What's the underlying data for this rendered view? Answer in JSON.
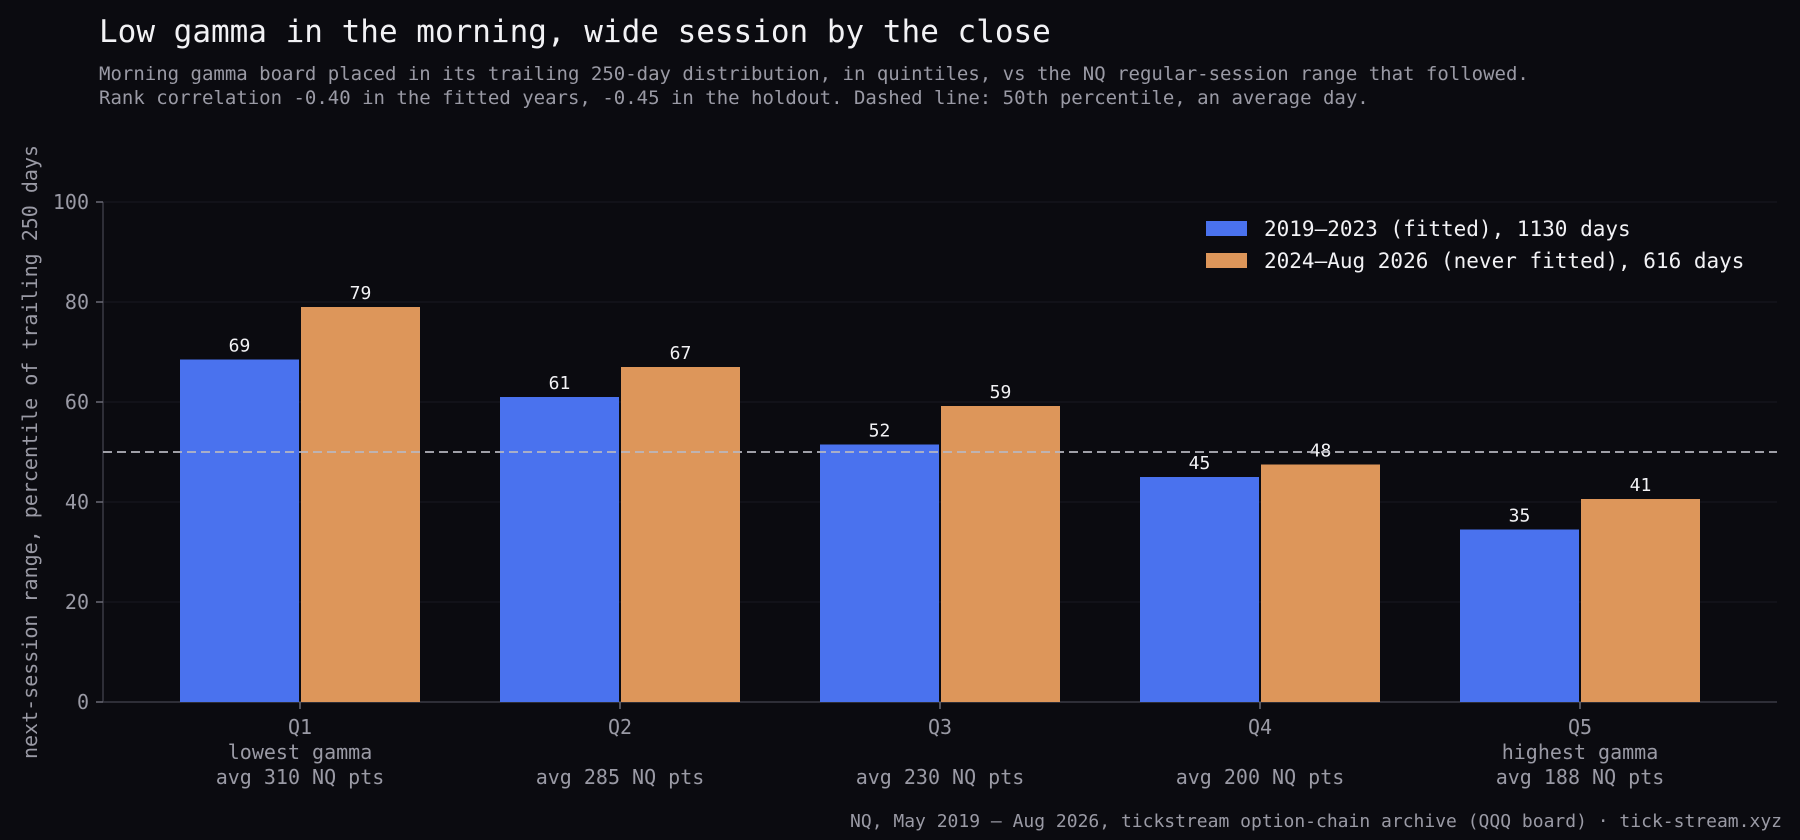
{
  "chart_data": {
    "type": "bar",
    "title": "Low gamma in the morning, wide session by the close",
    "subtitle": [
      "Morning gamma board placed in its trailing 250-day distribution, in quintiles, vs the NQ regular-session range that followed.",
      "Rank correlation -0.40 in the fitted years, -0.45 in the holdout. Dashed line: 50th percentile, an average day."
    ],
    "ylabel": "next-session range, percentile of trailing 250 days",
    "xlabel": "",
    "ylim": [
      0,
      100
    ],
    "yticks": [
      0,
      20,
      40,
      60,
      80,
      100
    ],
    "categories": [
      "Q1",
      "Q2",
      "Q3",
      "Q4",
      "Q5"
    ],
    "category_sublabels": [
      [
        "lowest gamma",
        "avg 310 NQ pts"
      ],
      [
        "",
        "avg 285 NQ pts"
      ],
      [
        "",
        "avg 230 NQ pts"
      ],
      [
        "",
        "avg 200 NQ pts"
      ],
      [
        "highest gamma",
        "avg 188 NQ pts"
      ]
    ],
    "series": [
      {
        "name": "2019–2023 (fitted), 1130 days",
        "color": "#4a72ee",
        "values": [
          68.5,
          61,
          51.5,
          45,
          34.5
        ],
        "labels": [
          "69",
          "61",
          "52",
          "45",
          "35"
        ]
      },
      {
        "name": "2024–Aug 2026 (never fitted), 616 days",
        "color": "#dd965a",
        "values": [
          79,
          67,
          59.2,
          47.5,
          40.6
        ],
        "labels": [
          "79",
          "67",
          "59",
          "48",
          "41"
        ]
      }
    ],
    "reference_line": {
      "value": 50,
      "style": "dashed"
    },
    "legend_position": "top-right",
    "grid": "horizontal, faint",
    "source": "NQ, May 2019 – Aug 2026, tickstream option-chain archive (QQQ board) · tick-stream.xyz"
  }
}
